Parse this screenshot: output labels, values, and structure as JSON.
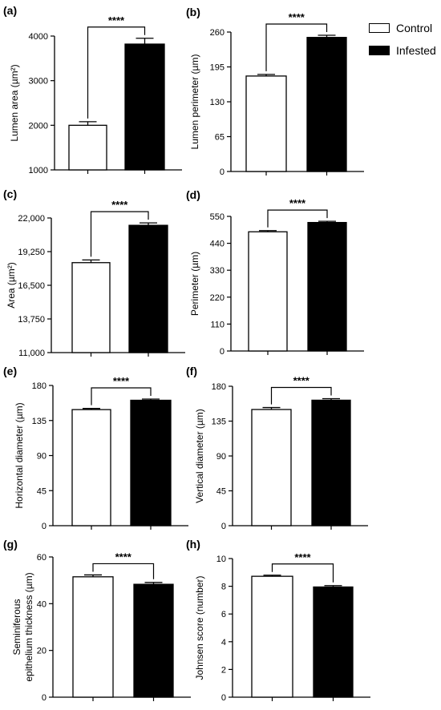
{
  "legend": {
    "control_label": "Control",
    "infested_label": "Infested",
    "control_color": "#ffffff",
    "infested_color": "#000000"
  },
  "chart_data": [
    {
      "id": "a",
      "panel_label": "(a)",
      "type": "bar",
      "ylabel": "Lumen area (µm²)",
      "ylim": [
        1000,
        4000
      ],
      "yticks": [
        "1000",
        "2000",
        "3000",
        "4000"
      ],
      "significance": "****",
      "series": [
        {
          "name": "Control",
          "values": [
            2000
          ],
          "error": [
            80
          ]
        },
        {
          "name": "Infested",
          "values": [
            3820
          ],
          "error": [
            130
          ]
        }
      ]
    },
    {
      "id": "b",
      "panel_label": "(b)",
      "type": "bar",
      "ylabel": "Lumen perimeter (µm)",
      "ylim": [
        0,
        260
      ],
      "yticks": [
        "0",
        "65",
        "130",
        "195",
        "260"
      ],
      "significance": "****",
      "series": [
        {
          "name": "Control",
          "values": [
            178
          ],
          "error": [
            3
          ]
        },
        {
          "name": "Infested",
          "values": [
            250
          ],
          "error": [
            4
          ]
        }
      ]
    },
    {
      "id": "c",
      "panel_label": "(c)",
      "type": "bar",
      "ylabel": "Area (µm²)",
      "ylim": [
        11000,
        22000
      ],
      "yticks": [
        "11,000",
        "13,750",
        "16,500",
        "19,250",
        "22,000"
      ],
      "significance": "****",
      "series": [
        {
          "name": "Control",
          "values": [
            18350
          ],
          "error": [
            220
          ]
        },
        {
          "name": "Infested",
          "values": [
            21400
          ],
          "error": [
            200
          ]
        }
      ]
    },
    {
      "id": "d",
      "panel_label": "(d)",
      "type": "bar",
      "ylabel": "Perimeter (µm)",
      "ylim": [
        0,
        550
      ],
      "yticks": [
        "0",
        "110",
        "220",
        "330",
        "440",
        "550"
      ],
      "significance": "****",
      "series": [
        {
          "name": "Control",
          "values": [
            487
          ],
          "error": [
            5
          ]
        },
        {
          "name": "Infested",
          "values": [
            525
          ],
          "error": [
            5
          ]
        }
      ]
    },
    {
      "id": "e",
      "panel_label": "(e)",
      "type": "bar",
      "ylabel": "Horizontal diameter (µm)",
      "ylim": [
        0,
        180
      ],
      "yticks": [
        "0",
        "45",
        "90",
        "135",
        "180"
      ],
      "significance": "****",
      "series": [
        {
          "name": "Control",
          "values": [
            149
          ],
          "error": [
            1.5
          ]
        },
        {
          "name": "Infested",
          "values": [
            161
          ],
          "error": [
            1.5
          ]
        }
      ]
    },
    {
      "id": "f",
      "panel_label": "(f)",
      "type": "bar",
      "ylabel": "Vertical diameter (µm)",
      "ylim": [
        0,
        180
      ],
      "yticks": [
        "0",
        "45",
        "90",
        "135",
        "180"
      ],
      "significance": "****",
      "series": [
        {
          "name": "Control",
          "values": [
            150
          ],
          "error": [
            2.5
          ]
        },
        {
          "name": "Infested",
          "values": [
            162
          ],
          "error": [
            2
          ]
        }
      ]
    },
    {
      "id": "g",
      "panel_label": "(g)",
      "type": "bar",
      "ylabel_lines": [
        "Seminiferous",
        "epithelium thickness (µm)"
      ],
      "ylim": [
        0,
        60
      ],
      "yticks": [
        "0",
        "20",
        "40",
        "60"
      ],
      "significance": "****",
      "series": [
        {
          "name": "Control",
          "values": [
            51.5
          ],
          "error": [
            0.8
          ]
        },
        {
          "name": "Infested",
          "values": [
            48.3
          ],
          "error": [
            0.8
          ]
        }
      ]
    },
    {
      "id": "h",
      "panel_label": "(h)",
      "type": "bar",
      "ylabel": "Johnsen score (number)",
      "ylim": [
        0,
        10
      ],
      "yticks": [
        "0",
        "2",
        "4",
        "6",
        "8",
        "10"
      ],
      "significance": "****",
      "series": [
        {
          "name": "Control",
          "values": [
            8.72
          ],
          "error": [
            0.08
          ]
        },
        {
          "name": "Infested",
          "values": [
            7.95
          ],
          "error": [
            0.1
          ]
        }
      ]
    }
  ]
}
